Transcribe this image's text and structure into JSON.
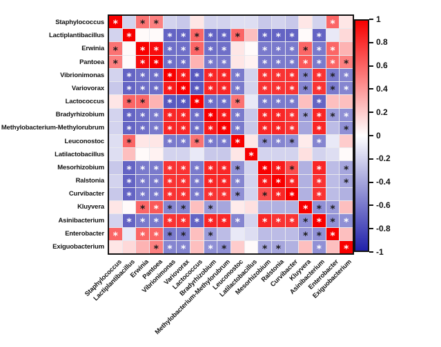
{
  "chart_data": {
    "type": "heatmap",
    "title": "",
    "xlabel": "",
    "ylabel": "",
    "legend_position": "right",
    "grid": true,
    "x_categories": [
      "Staphylococcus",
      "Lactiplantibacillus",
      "Erwinia",
      "Pantoea",
      "Vibrionimonas",
      "Variovorax",
      "Lactococcus",
      "Bradyrhizobium",
      "Methylobacterium-Methylorubrum",
      "Leuconostoc",
      "Latilactobacillus",
      "Mesorhizobium",
      "Ralstonia",
      "Curvibacter",
      "Kluyvera",
      "Asinibacterium",
      "Enterobacter",
      "Exiguobacterium"
    ],
    "y_categories": [
      "Staphylococcus",
      "Lactiplantibacillus",
      "Erwinia",
      "Pantoea",
      "Vibrionimonas",
      "Variovorax",
      "Lactococcus",
      "Bradyrhizobium",
      "Methylobacterium-Methylorubrum",
      "Leuconostoc",
      "Latilactobacillus",
      "Mesorhizobium",
      "Ralstonia",
      "Curvibacter",
      "Kluyvera",
      "Asinibacterium",
      "Enterobacter",
      "Exiguobacterium"
    ],
    "value_range": [
      -1,
      1
    ],
    "matrix": [
      [
        1.0,
        -0.2,
        0.55,
        0.5,
        -0.2,
        -0.25,
        0.1,
        -0.2,
        -0.2,
        -0.15,
        -0.15,
        -0.25,
        -0.2,
        -0.25,
        0.1,
        -0.2,
        0.6,
        0.1
      ],
      [
        -0.2,
        1.0,
        0.02,
        0.02,
        -0.7,
        -0.7,
        0.6,
        -0.7,
        -0.7,
        0.6,
        0.25,
        -0.7,
        -0.7,
        -0.7,
        0.02,
        -0.7,
        -0.1,
        0.15
      ],
      [
        0.55,
        0.02,
        1.0,
        0.95,
        -0.65,
        -0.65,
        0.6,
        -0.65,
        -0.65,
        0.1,
        0.02,
        -0.6,
        -0.6,
        -0.6,
        0.6,
        -0.6,
        0.6,
        0.3
      ],
      [
        0.5,
        0.02,
        0.95,
        1.0,
        -0.65,
        -0.65,
        0.3,
        -0.6,
        -0.6,
        0.1,
        0.05,
        -0.6,
        -0.6,
        -0.6,
        0.65,
        -0.6,
        0.6,
        0.5
      ],
      [
        -0.2,
        -0.7,
        -0.65,
        -0.65,
        1.0,
        0.9,
        -0.75,
        0.85,
        0.85,
        -0.6,
        -0.2,
        0.8,
        0.8,
        0.8,
        -0.55,
        0.8,
        -0.6,
        -0.55
      ],
      [
        -0.25,
        -0.7,
        -0.65,
        -0.65,
        0.9,
        1.0,
        -0.75,
        0.85,
        0.85,
        -0.6,
        -0.2,
        0.8,
        0.8,
        0.8,
        -0.55,
        0.8,
        -0.6,
        -0.55
      ],
      [
        0.1,
        0.6,
        0.6,
        0.3,
        -0.75,
        -0.75,
        1.0,
        -0.65,
        -0.65,
        0.55,
        -0.1,
        -0.6,
        -0.6,
        -0.6,
        0.25,
        -0.7,
        0.25,
        0.25
      ],
      [
        -0.2,
        -0.7,
        -0.65,
        -0.6,
        0.85,
        0.85,
        -0.65,
        1.0,
        0.9,
        -0.6,
        -0.25,
        0.85,
        0.85,
        0.8,
        -0.45,
        0.85,
        -0.45,
        -0.5
      ],
      [
        -0.2,
        -0.7,
        -0.65,
        -0.6,
        0.85,
        0.85,
        -0.65,
        0.9,
        1.0,
        -0.6,
        -0.25,
        0.85,
        0.85,
        0.8,
        -0.4,
        0.85,
        -0.3,
        -0.5
      ],
      [
        -0.15,
        0.6,
        0.1,
        0.1,
        -0.6,
        -0.6,
        0.55,
        -0.6,
        -0.6,
        1.0,
        0.1,
        -0.5,
        -0.55,
        -0.5,
        0.08,
        -0.55,
        -0.1,
        0.2
      ],
      [
        -0.15,
        0.25,
        0.02,
        0.05,
        -0.2,
        -0.2,
        -0.1,
        -0.25,
        -0.25,
        0.1,
        1.0,
        -0.2,
        -0.2,
        -0.2,
        0.12,
        -0.2,
        -0.15,
        0.02
      ],
      [
        -0.25,
        -0.7,
        -0.6,
        -0.6,
        0.8,
        0.8,
        -0.6,
        0.85,
        0.85,
        -0.5,
        -0.2,
        1.0,
        0.9,
        0.7,
        -0.35,
        0.85,
        -0.3,
        -0.4
      ],
      [
        -0.2,
        -0.7,
        -0.6,
        -0.6,
        0.8,
        0.8,
        -0.6,
        0.85,
        0.85,
        -0.55,
        -0.2,
        0.9,
        1.0,
        0.85,
        -0.35,
        0.8,
        -0.3,
        -0.4
      ],
      [
        -0.25,
        -0.7,
        -0.6,
        -0.6,
        0.8,
        0.8,
        -0.6,
        0.8,
        0.8,
        -0.5,
        -0.2,
        0.7,
        0.85,
        1.0,
        -0.35,
        0.8,
        -0.3,
        -0.35
      ],
      [
        0.1,
        0.02,
        0.6,
        0.65,
        -0.55,
        -0.55,
        0.25,
        -0.45,
        -0.4,
        0.08,
        0.12,
        -0.35,
        -0.35,
        -0.35,
        1.0,
        -0.5,
        -0.45,
        0.25
      ],
      [
        -0.2,
        -0.7,
        -0.6,
        -0.6,
        0.8,
        0.8,
        -0.7,
        0.85,
        0.85,
        -0.55,
        -0.2,
        0.85,
        0.8,
        0.8,
        -0.5,
        1.0,
        -0.5,
        -0.5
      ],
      [
        0.6,
        -0.1,
        0.6,
        0.6,
        -0.6,
        -0.6,
        0.25,
        -0.45,
        -0.3,
        -0.1,
        -0.15,
        -0.3,
        -0.3,
        -0.3,
        -0.45,
        -0.5,
        1.0,
        0.25
      ],
      [
        0.1,
        0.15,
        0.3,
        0.5,
        -0.55,
        -0.55,
        0.25,
        -0.5,
        -0.5,
        0.2,
        0.02,
        -0.4,
        -0.4,
        -0.35,
        0.25,
        -0.5,
        0.25,
        1.0
      ]
    ],
    "significance_marker": "*",
    "significance": [
      [
        2,
        0,
        1,
        1,
        0,
        0,
        0,
        0,
        0,
        0,
        0,
        0,
        0,
        0,
        0,
        0,
        2,
        0
      ],
      [
        0,
        2,
        0,
        0,
        2,
        2,
        1,
        2,
        2,
        1,
        0,
        2,
        2,
        2,
        0,
        2,
        0,
        0
      ],
      [
        1,
        0,
        2,
        2,
        2,
        2,
        1,
        2,
        2,
        0,
        0,
        2,
        2,
        2,
        1,
        2,
        2,
        0
      ],
      [
        1,
        0,
        2,
        2,
        2,
        2,
        0,
        2,
        2,
        0,
        0,
        2,
        2,
        2,
        2,
        2,
        2,
        1
      ],
      [
        0,
        2,
        2,
        2,
        2,
        2,
        2,
        2,
        2,
        2,
        0,
        2,
        2,
        2,
        1,
        2,
        1,
        2
      ],
      [
        0,
        2,
        2,
        2,
        2,
        2,
        2,
        2,
        2,
        2,
        0,
        2,
        2,
        2,
        1,
        2,
        1,
        2
      ],
      [
        0,
        1,
        1,
        0,
        2,
        2,
        2,
        2,
        2,
        1,
        0,
        2,
        2,
        2,
        0,
        2,
        0,
        0
      ],
      [
        0,
        2,
        2,
        2,
        2,
        2,
        2,
        2,
        2,
        2,
        0,
        2,
        2,
        2,
        1,
        2,
        1,
        2
      ],
      [
        0,
        2,
        2,
        2,
        2,
        2,
        2,
        2,
        2,
        2,
        0,
        2,
        2,
        2,
        0,
        2,
        0,
        1
      ],
      [
        0,
        1,
        0,
        0,
        2,
        2,
        1,
        2,
        2,
        2,
        0,
        1,
        2,
        1,
        0,
        2,
        0,
        0
      ],
      [
        0,
        0,
        0,
        0,
        0,
        0,
        0,
        0,
        0,
        0,
        2,
        0,
        0,
        0,
        0,
        0,
        0,
        0
      ],
      [
        0,
        2,
        2,
        2,
        2,
        2,
        2,
        2,
        2,
        1,
        0,
        2,
        2,
        1,
        0,
        2,
        0,
        1
      ],
      [
        0,
        2,
        2,
        2,
        2,
        2,
        2,
        2,
        2,
        2,
        0,
        2,
        2,
        2,
        0,
        2,
        0,
        1
      ],
      [
        0,
        2,
        2,
        2,
        2,
        2,
        2,
        2,
        2,
        1,
        0,
        1,
        2,
        2,
        0,
        2,
        0,
        0
      ],
      [
        0,
        0,
        1,
        2,
        1,
        1,
        0,
        1,
        0,
        0,
        0,
        0,
        0,
        0,
        2,
        1,
        1,
        0
      ],
      [
        0,
        2,
        2,
        2,
        2,
        2,
        2,
        2,
        2,
        2,
        0,
        2,
        2,
        2,
        1,
        2,
        1,
        2
      ],
      [
        2,
        0,
        2,
        2,
        1,
        1,
        0,
        1,
        0,
        0,
        0,
        0,
        0,
        0,
        1,
        1,
        2,
        0
      ],
      [
        0,
        0,
        0,
        1,
        2,
        2,
        0,
        2,
        1,
        0,
        0,
        1,
        1,
        0,
        0,
        2,
        0,
        2
      ]
    ],
    "colorscale": {
      "positive_color": "#F80000",
      "zero_color": "#FFFFFF",
      "negative_color": "#2121AA",
      "asterisk_dark_color": "#1A1A1A",
      "asterisk_light_color": "#FFFFFF"
    },
    "colorbar_ticks": [
      "1",
      "0.8",
      "0.6",
      "0.4",
      "0.2",
      "0",
      "-0.2",
      "-0.4",
      "-0.6",
      "-0.8",
      "-1"
    ],
    "colorbar_tick_values": [
      1,
      0.8,
      0.6,
      0.4,
      0.2,
      0,
      -0.2,
      -0.4,
      -0.6,
      -0.8,
      -1
    ]
  }
}
